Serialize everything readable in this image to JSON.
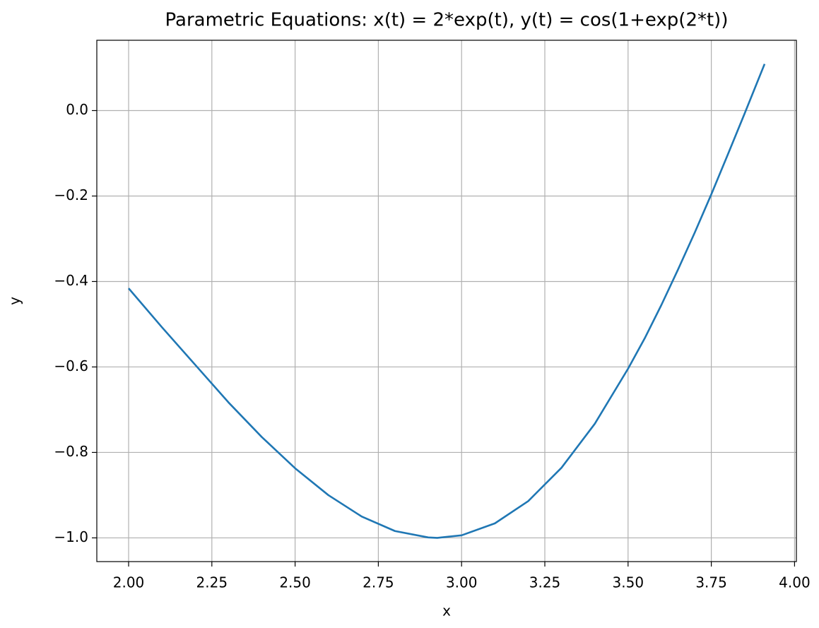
{
  "chart_data": {
    "type": "line",
    "title": "Parametric Equations: x(t) = 2*exp(t), y(t) = cos(1+exp(2*t))",
    "xlabel": "x",
    "ylabel": "y",
    "x": [
      2.0,
      2.1,
      2.2,
      2.3,
      2.4,
      2.5,
      2.6,
      2.7,
      2.8,
      2.9,
      2.927,
      3.0,
      3.1,
      3.2,
      3.3,
      3.4,
      3.5,
      3.55,
      3.6,
      3.65,
      3.7,
      3.75,
      3.8,
      3.85,
      3.91
    ],
    "series": [
      {
        "name": "y",
        "color": "#1f77b4",
        "values": [
          -0.416,
          -0.507,
          -0.595,
          -0.683,
          -0.764,
          -0.837,
          -0.9,
          -0.95,
          -0.984,
          -0.999,
          -1.0,
          -0.994,
          -0.966,
          -0.914,
          -0.836,
          -0.733,
          -0.604,
          -0.533,
          -0.455,
          -0.372,
          -0.286,
          -0.196,
          -0.102,
          -0.007,
          0.109
        ]
      }
    ],
    "xlim": [
      1.9045,
      4.0055
    ],
    "ylim": [
      -1.0555,
      0.1645
    ],
    "xticks": [
      {
        "value": 2.0,
        "label": "2.00"
      },
      {
        "value": 2.25,
        "label": "2.25"
      },
      {
        "value": 2.5,
        "label": "2.50"
      },
      {
        "value": 2.75,
        "label": "2.75"
      },
      {
        "value": 3.0,
        "label": "3.00"
      },
      {
        "value": 3.25,
        "label": "3.25"
      },
      {
        "value": 3.5,
        "label": "3.50"
      },
      {
        "value": 3.75,
        "label": "3.75"
      },
      {
        "value": 4.0,
        "label": "4.00"
      }
    ],
    "yticks": [
      {
        "value": -1.0,
        "label": "−1.0"
      },
      {
        "value": -0.8,
        "label": "−0.8"
      },
      {
        "value": -0.6,
        "label": "−0.6"
      },
      {
        "value": -0.4,
        "label": "−0.4"
      },
      {
        "value": -0.2,
        "label": "−0.2"
      },
      {
        "value": 0.0,
        "label": "0.0"
      }
    ],
    "grid": true
  }
}
